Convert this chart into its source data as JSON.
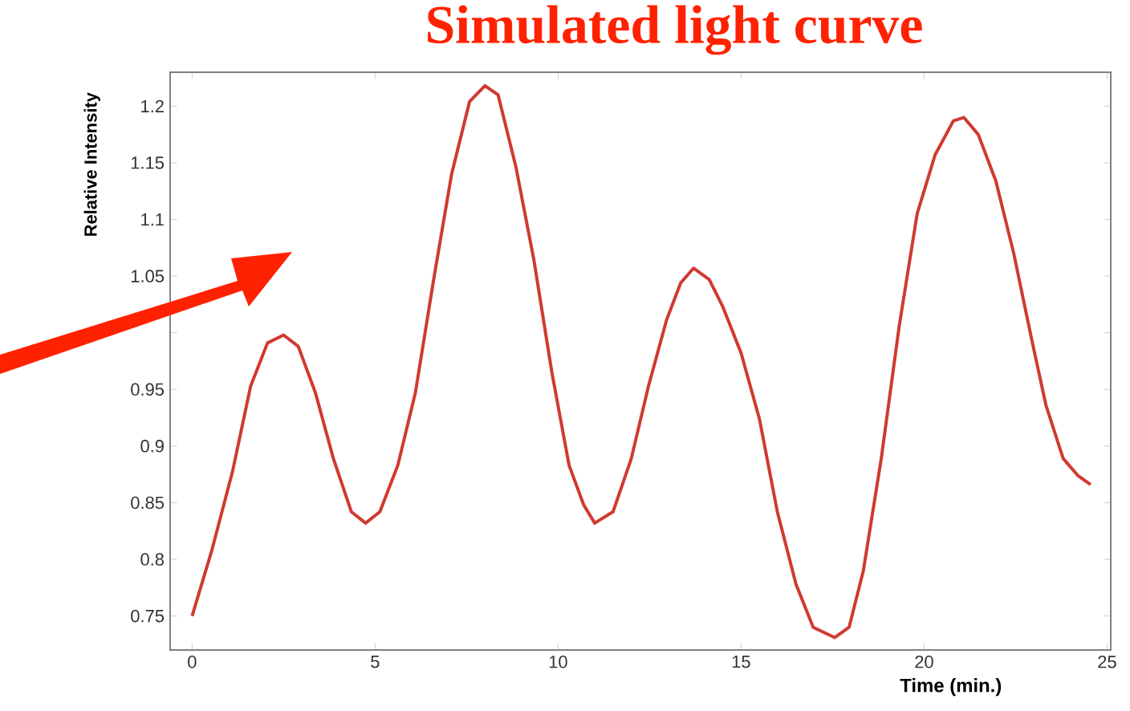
{
  "chart_data": {
    "type": "line",
    "title": "Simulated light curve",
    "xlabel": "Time (min.)",
    "ylabel": "Relative Intensity",
    "x": [
      0,
      0.53,
      1.1,
      1.6,
      2.06,
      2.5,
      2.9,
      3.37,
      3.86,
      4.35,
      4.74,
      5.13,
      5.62,
      6.1,
      6.6,
      7.09,
      7.58,
      8.0,
      8.36,
      8.85,
      9.34,
      9.83,
      10.3,
      10.7,
      11.0,
      11.5,
      12.0,
      12.47,
      12.96,
      13.35,
      13.7,
      14.13,
      14.5,
      15.0,
      15.5,
      15.99,
      16.5,
      16.97,
      17.56,
      17.95,
      18.34,
      18.83,
      19.32,
      19.81,
      20.3,
      20.8,
      21.09,
      21.48,
      21.96,
      22.45,
      22.94,
      23.33,
      23.8,
      24.2,
      24.55
    ],
    "values": [
      0.75,
      0.807,
      0.877,
      0.953,
      0.991,
      0.998,
      0.988,
      0.947,
      0.889,
      0.842,
      0.832,
      0.842,
      0.883,
      0.947,
      1.047,
      1.14,
      1.204,
      1.218,
      1.21,
      1.146,
      1.064,
      0.965,
      0.883,
      0.848,
      0.832,
      0.842,
      0.889,
      0.953,
      1.011,
      1.044,
      1.057,
      1.047,
      1.023,
      0.982,
      0.924,
      0.842,
      0.778,
      0.74,
      0.731,
      0.74,
      0.79,
      0.889,
      1.006,
      1.105,
      1.157,
      1.187,
      1.19,
      1.175,
      1.134,
      1.07,
      0.994,
      0.936,
      0.889,
      0.874,
      0.866
    ],
    "color": "#d03a30",
    "line_style": "solid",
    "marker": "none",
    "grid": false,
    "xlim": [
      -0.6,
      25.1
    ],
    "ylim": [
      0.72,
      1.23
    ],
    "xticks": [
      0,
      5,
      10,
      15,
      20,
      25
    ],
    "yticks": [
      0.75,
      0.8,
      0.85,
      0.9,
      0.95,
      {
        "value": 1,
        "label": null
      },
      1.05,
      1.1,
      1.15,
      1.2
    ]
  }
}
